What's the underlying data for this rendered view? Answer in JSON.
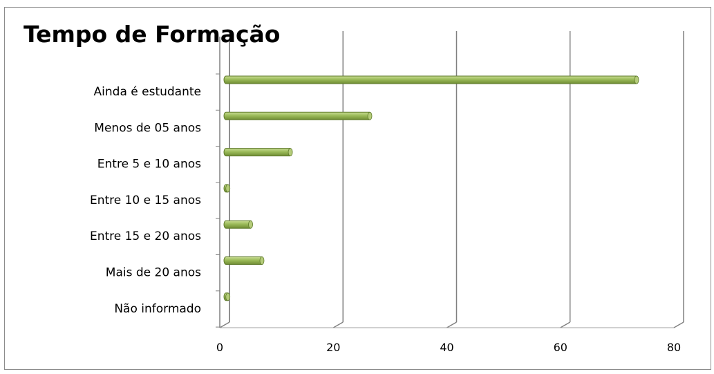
{
  "chart_data": {
    "type": "bar",
    "orientation": "horizontal",
    "title": "Tempo de Formação",
    "categories": [
      "Ainda é estudante",
      "Menos de 05 anos",
      "Entre 5 e 10 anos",
      "Entre 10 e 15 anos",
      "Entre 15 e 20 anos",
      "Mais de 20 anos",
      "Não informado"
    ],
    "values": [
      73,
      26,
      12,
      1,
      5,
      7,
      1
    ],
    "xlim": [
      0,
      80
    ],
    "xticks": [
      "0",
      "20",
      "40",
      "60",
      "80"
    ],
    "grid": true,
    "legend": "none",
    "bar_color": "#9bbb59",
    "bar_edge_color": "#5e7a2a",
    "grid_color": "#808080"
  }
}
